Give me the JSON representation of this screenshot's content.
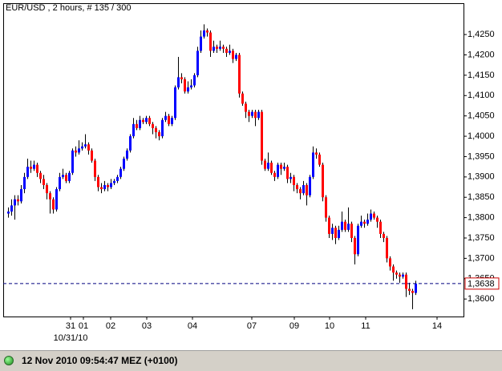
{
  "chart_data": {
    "type": "candlestick",
    "title": "EUR/USD , 2 hours, # 135 / 300",
    "up_color": "#0000ff",
    "down_color": "#ff0000",
    "grid": false,
    "ylim": [
      1.3557,
      1.4327
    ],
    "yticks": [
      {
        "value": 1.36,
        "label": "1,3600"
      },
      {
        "value": 1.365,
        "label": "1,3650"
      },
      {
        "value": 1.37,
        "label": "1,3700"
      },
      {
        "value": 1.375,
        "label": "1,3750"
      },
      {
        "value": 1.38,
        "label": "1,3800"
      },
      {
        "value": 1.385,
        "label": "1,3850"
      },
      {
        "value": 1.39,
        "label": "1,3900"
      },
      {
        "value": 1.395,
        "label": "1,3950"
      },
      {
        "value": 1.4,
        "label": "1,4000"
      },
      {
        "value": 1.405,
        "label": "1,4050"
      },
      {
        "value": 1.41,
        "label": "1,4100"
      },
      {
        "value": 1.415,
        "label": "1,4150"
      },
      {
        "value": 1.42,
        "label": "1,4200"
      },
      {
        "value": 1.425,
        "label": "1,4250"
      }
    ],
    "xlim": [
      -1.5,
      142
    ],
    "xticks": [
      {
        "value": 19.5,
        "label": "31"
      },
      {
        "value": 23.5,
        "label": "01"
      },
      {
        "value": 32,
        "label": "02"
      },
      {
        "value": 43.25,
        "label": "03"
      },
      {
        "value": 57.5,
        "label": "04"
      },
      {
        "value": 76,
        "label": "07"
      },
      {
        "value": 89.25,
        "label": "09"
      },
      {
        "value": 100.25,
        "label": "10"
      },
      {
        "value": 111.5,
        "label": "11"
      },
      {
        "value": 133.75,
        "label": "14"
      }
    ],
    "x_sublabel": {
      "value": 19.5,
      "label": "10/31/10"
    },
    "last_price": {
      "value": 1.3638,
      "label": "1,3638"
    },
    "ohlc": [
      [
        1.381,
        1.3825,
        1.38,
        1.3815
      ],
      [
        1.3815,
        1.3845,
        1.3805,
        1.383
      ],
      [
        1.383,
        1.3855,
        1.3795,
        1.3845
      ],
      [
        1.3845,
        1.3855,
        1.383,
        1.384
      ],
      [
        1.384,
        1.388,
        1.3835,
        1.387
      ],
      [
        1.387,
        1.391,
        1.386,
        1.39
      ],
      [
        1.39,
        1.3945,
        1.3895,
        1.3925
      ],
      [
        1.3925,
        1.394,
        1.391,
        1.392
      ],
      [
        1.392,
        1.394,
        1.3915,
        1.393
      ],
      [
        1.393,
        1.3935,
        1.39,
        1.391
      ],
      [
        1.391,
        1.3915,
        1.3885,
        1.3895
      ],
      [
        1.3895,
        1.3905,
        1.387,
        1.388
      ],
      [
        1.388,
        1.3885,
        1.3845,
        1.386
      ],
      [
        1.386,
        1.3865,
        1.381,
        1.3845
      ],
      [
        1.3845,
        1.385,
        1.381,
        1.382
      ],
      [
        1.382,
        1.3875,
        1.3815,
        1.387
      ],
      [
        1.387,
        1.391,
        1.3865,
        1.39
      ],
      [
        1.39,
        1.392,
        1.3895,
        1.3905
      ],
      [
        1.3905,
        1.391,
        1.3885,
        1.389
      ],
      [
        1.389,
        1.3915,
        1.3885,
        1.391
      ],
      [
        1.391,
        1.397,
        1.3905,
        1.3965
      ],
      [
        1.3965,
        1.3975,
        1.395,
        1.396
      ],
      [
        1.396,
        1.399,
        1.3955,
        1.397
      ],
      [
        1.397,
        1.3985,
        1.3965,
        1.3975
      ],
      [
        1.3975,
        1.4005,
        1.397,
        1.398
      ],
      [
        1.398,
        1.3985,
        1.3955,
        1.3965
      ],
      [
        1.3965,
        1.397,
        1.3935,
        1.394
      ],
      [
        1.394,
        1.3945,
        1.389,
        1.39
      ],
      [
        1.39,
        1.3905,
        1.3865,
        1.3875
      ],
      [
        1.3875,
        1.3885,
        1.386,
        1.387
      ],
      [
        1.387,
        1.389,
        1.3865,
        1.388
      ],
      [
        1.388,
        1.3885,
        1.3865,
        1.3875
      ],
      [
        1.3875,
        1.3895,
        1.387,
        1.3885
      ],
      [
        1.3885,
        1.3895,
        1.388,
        1.389
      ],
      [
        1.389,
        1.3905,
        1.3885,
        1.39
      ],
      [
        1.39,
        1.3925,
        1.3895,
        1.392
      ],
      [
        1.392,
        1.395,
        1.3915,
        1.3945
      ],
      [
        1.3945,
        1.397,
        1.394,
        1.3965
      ],
      [
        1.3965,
        1.4005,
        1.396,
        1.4
      ],
      [
        1.4,
        1.4045,
        1.3995,
        1.403
      ],
      [
        1.403,
        1.404,
        1.4015,
        1.402
      ],
      [
        1.402,
        1.405,
        1.4015,
        1.404
      ],
      [
        1.404,
        1.4045,
        1.403,
        1.4035
      ],
      [
        1.4035,
        1.405,
        1.403,
        1.4045
      ],
      [
        1.4045,
        1.405,
        1.4025,
        1.403
      ],
      [
        1.403,
        1.4035,
        1.4005,
        1.402
      ],
      [
        1.402,
        1.4025,
        1.3995,
        1.401
      ],
      [
        1.401,
        1.4015,
        1.399,
        1.4
      ],
      [
        1.4,
        1.4045,
        1.3995,
        1.404
      ],
      [
        1.404,
        1.406,
        1.4035,
        1.405
      ],
      [
        1.405,
        1.4055,
        1.4025,
        1.403
      ],
      [
        1.403,
        1.405,
        1.4025,
        1.4045
      ],
      [
        1.4045,
        1.4125,
        1.404,
        1.412
      ],
      [
        1.412,
        1.4195,
        1.4115,
        1.4145
      ],
      [
        1.4145,
        1.4155,
        1.413,
        1.414
      ],
      [
        1.414,
        1.4145,
        1.4105,
        1.411
      ],
      [
        1.411,
        1.4135,
        1.4105,
        1.412
      ],
      [
        1.412,
        1.414,
        1.4115,
        1.4125
      ],
      [
        1.4125,
        1.4155,
        1.412,
        1.415
      ],
      [
        1.415,
        1.422,
        1.4145,
        1.421
      ],
      [
        1.421,
        1.426,
        1.4205,
        1.4245
      ],
      [
        1.4245,
        1.4275,
        1.424,
        1.426
      ],
      [
        1.426,
        1.4265,
        1.4245,
        1.4255
      ],
      [
        1.4255,
        1.426,
        1.4195,
        1.421
      ],
      [
        1.421,
        1.4235,
        1.4205,
        1.422
      ],
      [
        1.422,
        1.4225,
        1.4205,
        1.4215
      ],
      [
        1.4215,
        1.4235,
        1.421,
        1.422
      ],
      [
        1.422,
        1.4225,
        1.4205,
        1.4215
      ],
      [
        1.4215,
        1.422,
        1.4195,
        1.4205
      ],
      [
        1.4205,
        1.4225,
        1.42,
        1.421
      ],
      [
        1.421,
        1.4215,
        1.418,
        1.419
      ],
      [
        1.419,
        1.4205,
        1.4185,
        1.42
      ],
      [
        1.42,
        1.4205,
        1.4095,
        1.4105
      ],
      [
        1.4105,
        1.411,
        1.4075,
        1.408
      ],
      [
        1.408,
        1.4085,
        1.4045,
        1.406
      ],
      [
        1.406,
        1.4065,
        1.4035,
        1.405
      ],
      [
        1.405,
        1.4065,
        1.4045,
        1.406
      ],
      [
        1.406,
        1.4065,
        1.4025,
        1.4045
      ],
      [
        1.4045,
        1.4065,
        1.404,
        1.406
      ],
      [
        1.406,
        1.4065,
        1.393,
        1.394
      ],
      [
        1.394,
        1.3945,
        1.3915,
        1.392
      ],
      [
        1.392,
        1.396,
        1.3915,
        1.3935
      ],
      [
        1.3935,
        1.394,
        1.3905,
        1.391
      ],
      [
        1.391,
        1.3915,
        1.389,
        1.39
      ],
      [
        1.39,
        1.3935,
        1.3895,
        1.393
      ],
      [
        1.393,
        1.3935,
        1.3905,
        1.392
      ],
      [
        1.392,
        1.3935,
        1.3915,
        1.3925
      ],
      [
        1.3925,
        1.393,
        1.3885,
        1.3895
      ],
      [
        1.3895,
        1.391,
        1.3885,
        1.39
      ],
      [
        1.39,
        1.3905,
        1.3865,
        1.388
      ],
      [
        1.388,
        1.3885,
        1.386,
        1.387
      ],
      [
        1.387,
        1.3875,
        1.3845,
        1.386
      ],
      [
        1.386,
        1.389,
        1.3855,
        1.388
      ],
      [
        1.388,
        1.3885,
        1.383,
        1.3855
      ],
      [
        1.3855,
        1.3905,
        1.385,
        1.39
      ],
      [
        1.39,
        1.3975,
        1.3895,
        1.396
      ],
      [
        1.396,
        1.397,
        1.3945,
        1.3955
      ],
      [
        1.3955,
        1.396,
        1.3925,
        1.393
      ],
      [
        1.393,
        1.3935,
        1.384,
        1.385
      ],
      [
        1.385,
        1.3855,
        1.379,
        1.38
      ],
      [
        1.38,
        1.3805,
        1.375,
        1.376
      ],
      [
        1.376,
        1.3785,
        1.3745,
        1.3775
      ],
      [
        1.3775,
        1.378,
        1.3735,
        1.375
      ],
      [
        1.375,
        1.378,
        1.3745,
        1.377
      ],
      [
        1.377,
        1.3815,
        1.3765,
        1.379
      ],
      [
        1.379,
        1.3795,
        1.3765,
        1.377
      ],
      [
        1.377,
        1.3825,
        1.3765,
        1.3785
      ],
      [
        1.3785,
        1.379,
        1.374,
        1.375
      ],
      [
        1.375,
        1.3755,
        1.3685,
        1.371
      ],
      [
        1.371,
        1.3785,
        1.3705,
        1.378
      ],
      [
        1.378,
        1.3805,
        1.3775,
        1.379
      ],
      [
        1.379,
        1.3795,
        1.3775,
        1.3785
      ],
      [
        1.3785,
        1.381,
        1.378,
        1.3795
      ],
      [
        1.3795,
        1.382,
        1.379,
        1.381
      ],
      [
        1.381,
        1.3815,
        1.3795,
        1.38
      ],
      [
        1.38,
        1.3805,
        1.3775,
        1.379
      ],
      [
        1.379,
        1.3795,
        1.375,
        1.376
      ],
      [
        1.376,
        1.3765,
        1.374,
        1.375
      ],
      [
        1.375,
        1.3755,
        1.369,
        1.37
      ],
      [
        1.37,
        1.3705,
        1.367,
        1.368
      ],
      [
        1.368,
        1.3685,
        1.3645,
        1.3665
      ],
      [
        1.3665,
        1.367,
        1.365,
        1.366
      ],
      [
        1.366,
        1.3665,
        1.364,
        1.3655
      ],
      [
        1.3655,
        1.3665,
        1.365,
        1.366
      ],
      [
        1.366,
        1.3665,
        1.3605,
        1.3625
      ],
      [
        1.3625,
        1.364,
        1.361,
        1.362
      ],
      [
        1.362,
        1.3625,
        1.3575,
        1.3615
      ],
      [
        1.3615,
        1.3645,
        1.361,
        1.3638
      ]
    ]
  },
  "status_bar": {
    "text": "12 Nov 2010 09:54:47 MEZ (+0100)"
  }
}
